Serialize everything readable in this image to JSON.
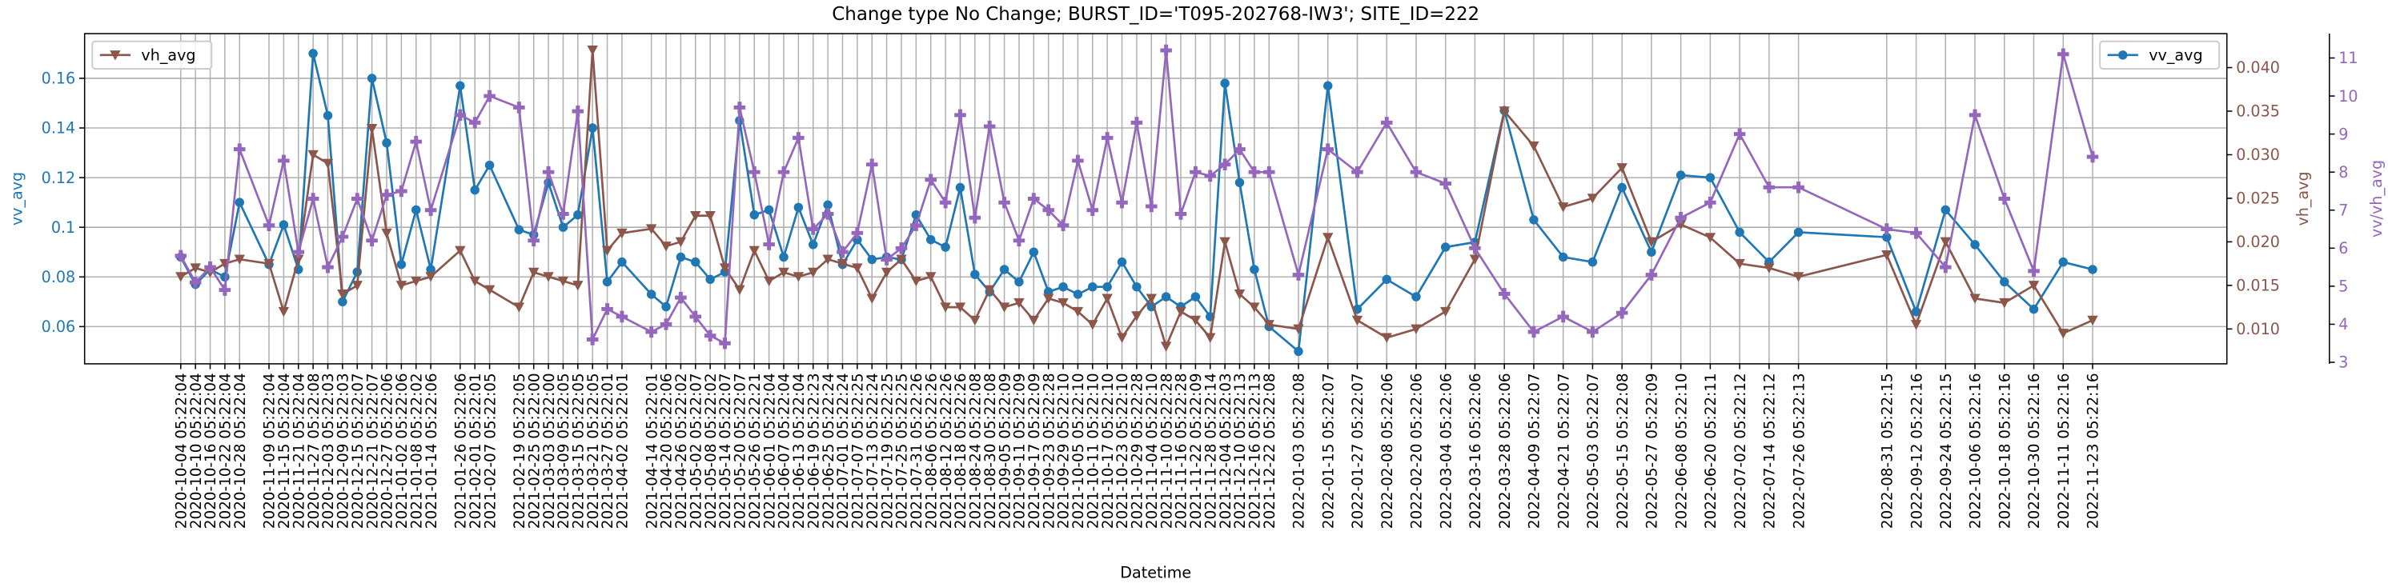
{
  "chart_data": {
    "type": "line",
    "title": "Change type No Change; BURST_ID='T095-202768-IW3'; SITE_ID=222",
    "xlabel": "Datetime",
    "ylabel": "vv_avg",
    "y2label": "vh_avg",
    "y3label": "vv/vh_avg",
    "grid": true,
    "x": [
      "2020-10-04 05:22:04",
      "2020-10-10 05:22:04",
      "2020-10-16 05:22:04",
      "2020-10-22 05:22:04",
      "2020-10-28 05:22:04",
      "2020-11-09 05:22:04",
      "2020-11-15 05:22:04",
      "2020-11-21 05:22:04",
      "2020-11-27 05:22:08",
      "2020-12-03 05:22:03",
      "2020-12-09 05:22:03",
      "2020-12-15 05:22:07",
      "2020-12-21 05:22:07",
      "2020-12-27 05:22:06",
      "2021-01-02 05:22:06",
      "2021-01-08 05:22:02",
      "2021-01-14 05:22:06",
      "2021-01-26 05:22:06",
      "2021-02-01 05:22:01",
      "2021-02-07 05:22:05",
      "2021-02-19 05:22:05",
      "2021-02-25 05:22:00",
      "2021-03-03 05:22:00",
      "2021-03-09 05:22:05",
      "2021-03-15 05:22:05",
      "2021-03-21 05:22:05",
      "2021-03-27 05:22:01",
      "2021-04-02 05:22:01",
      "2021-04-14 05:22:01",
      "2021-04-20 05:22:06",
      "2021-04-26 05:22:02",
      "2021-05-02 05:22:07",
      "2021-05-08 05:22:02",
      "2021-05-14 05:22:07",
      "2021-05-20 05:22:07",
      "2021-05-26 05:22:21",
      "2021-06-01 05:22:04",
      "2021-06-07 05:22:04",
      "2021-06-13 05:22:04",
      "2021-06-19 05:22:23",
      "2021-06-25 05:22:24",
      "2021-07-01 05:22:24",
      "2021-07-07 05:22:25",
      "2021-07-13 05:22:24",
      "2021-07-19 05:22:25",
      "2021-07-25 05:22:25",
      "2021-07-31 05:22:26",
      "2021-08-06 05:22:26",
      "2021-08-12 05:22:26",
      "2021-08-18 05:22:26",
      "2021-08-24 05:22:08",
      "2021-08-30 05:22:08",
      "2021-09-05 05:22:09",
      "2021-09-11 05:22:09",
      "2021-09-17 05:22:09",
      "2021-09-23 05:22:28",
      "2021-09-29 05:22:10",
      "2021-10-05 05:22:10",
      "2021-10-11 05:22:10",
      "2021-10-17 05:22:10",
      "2021-10-23 05:22:10",
      "2021-10-29 05:22:28",
      "2021-11-04 05:22:10",
      "2021-11-10 05:22:28",
      "2021-11-16 05:22:28",
      "2021-11-22 05:22:09",
      "2021-11-28 05:22:14",
      "2021-12-04 05:22:03",
      "2021-12-10 05:22:13",
      "2021-12-16 05:22:13",
      "2021-12-22 05:22:08",
      "2022-01-03 05:22:08",
      "2022-01-15 05:22:07",
      "2022-01-27 05:22:07",
      "2022-02-08 05:22:06",
      "2022-02-20 05:22:06",
      "2022-03-04 05:22:06",
      "2022-03-16 05:22:06",
      "2022-03-28 05:22:06",
      "2022-04-09 05:22:07",
      "2022-04-21 05:22:07",
      "2022-05-03 05:22:07",
      "2022-05-15 05:22:08",
      "2022-05-27 05:22:09",
      "2022-06-08 05:22:10",
      "2022-06-20 05:22:11",
      "2022-07-02 05:22:12",
      "2022-07-14 05:22:12",
      "2022-07-26 05:22:13",
      "2022-08-31 05:22:15",
      "2022-09-12 05:22:16",
      "2022-09-24 05:22:15",
      "2022-10-06 05:22:16",
      "2022-10-18 05:22:16",
      "2022-10-30 05:22:16",
      "2022-11-11 05:22:16",
      "2022-11-23 05:22:16"
    ],
    "xlim": [
      "2020-08-26",
      "2023-01-17"
    ],
    "ylim": [
      0.045,
      0.178
    ],
    "yticks": [
      0.06,
      0.08,
      0.1,
      0.12,
      0.14,
      0.16
    ],
    "y2lim": [
      0.006,
      0.0439
    ],
    "y2ticks": [
      {
        "value": 0.01,
        "label": "0.010"
      },
      {
        "value": 0.015,
        "label": "0.015"
      },
      {
        "value": 0.02,
        "label": "0.020"
      },
      {
        "value": 0.025,
        "label": "0.025"
      },
      {
        "value": 0.03,
        "label": "0.030"
      },
      {
        "value": 0.035,
        "label": "0.035"
      },
      {
        "value": 0.04,
        "label": "0.040"
      }
    ],
    "y3lim": [
      2.96,
      11.64
    ],
    "y3ticks": [
      3,
      4,
      5,
      6,
      7,
      8,
      9,
      10,
      11
    ],
    "series": [
      {
        "name": "vv_avg",
        "color": "#1f77b4",
        "axis": "y",
        "marker": "circle",
        "legend_loc": "upper right",
        "values": [
          0.088,
          0.077,
          0.083,
          0.08,
          0.11,
          0.085,
          0.101,
          0.083,
          0.17,
          0.145,
          0.07,
          0.082,
          0.16,
          0.134,
          0.085,
          0.107,
          0.083,
          0.157,
          0.115,
          0.125,
          0.099,
          0.097,
          0.118,
          0.1,
          0.105,
          0.14,
          0.078,
          0.086,
          0.073,
          0.068,
          0.088,
          0.086,
          0.079,
          0.082,
          0.143,
          0.105,
          0.107,
          0.088,
          0.108,
          0.093,
          0.109,
          0.085,
          0.095,
          0.087,
          0.088,
          0.087,
          0.105,
          0.095,
          0.092,
          0.116,
          0.081,
          0.074,
          0.083,
          0.078,
          0.09,
          0.074,
          0.076,
          0.073,
          0.076,
          0.076,
          0.086,
          0.076,
          0.068,
          0.072,
          0.068,
          0.072,
          0.064,
          0.158,
          0.118,
          0.083,
          0.06,
          0.05,
          0.157,
          0.067,
          0.079,
          0.072,
          0.092,
          0.094,
          0.147,
          0.103,
          0.088,
          0.086,
          0.116,
          0.09,
          0.121,
          0.12,
          0.098,
          0.086,
          0.098,
          0.096,
          0.066,
          0.107,
          0.093,
          0.078,
          0.067,
          0.086,
          0.083
        ]
      },
      {
        "name": "vh_avg",
        "color": "#8c564b",
        "axis": "y2",
        "marker": "triangle-down",
        "legend_loc": "upper left",
        "values": [
          0.016,
          0.017,
          0.0165,
          0.0175,
          0.018,
          0.0175,
          0.012,
          0.018,
          0.03,
          0.029,
          0.014,
          0.015,
          0.033,
          0.021,
          0.015,
          0.0155,
          0.016,
          0.019,
          0.0155,
          0.0145,
          0.0125,
          0.0165,
          0.016,
          0.0155,
          0.015,
          0.042,
          0.019,
          0.021,
          0.0215,
          0.0195,
          0.02,
          0.023,
          0.023,
          0.017,
          0.0145,
          0.019,
          0.0155,
          0.0165,
          0.016,
          0.0165,
          0.018,
          0.0175,
          0.017,
          0.0135,
          0.0165,
          0.018,
          0.0155,
          0.016,
          0.0125,
          0.0125,
          0.011,
          0.0145,
          0.0125,
          0.013,
          0.011,
          0.0135,
          0.013,
          0.012,
          0.0105,
          0.0135,
          0.009,
          0.0115,
          0.0135,
          0.008,
          0.012,
          0.011,
          0.009,
          0.02,
          0.014,
          0.0125,
          0.0105,
          0.01,
          0.0205,
          0.011,
          0.009,
          0.01,
          0.012,
          0.018,
          0.035,
          0.031,
          0.024,
          0.025,
          0.0285,
          0.02,
          0.022,
          0.0205,
          0.0175,
          0.017,
          0.016,
          0.0185,
          0.0105,
          0.02,
          0.0135,
          0.013,
          0.015,
          0.0095,
          0.011
        ]
      },
      {
        "color": "#9467bd",
        "axis": "y3",
        "marker": "plus",
        "values": [
          5.8,
          5.1,
          5.5,
          4.9,
          8.6,
          6.6,
          8.3,
          5.9,
          7.3,
          5.5,
          6.3,
          7.3,
          6.2,
          7.4,
          7.5,
          8.8,
          7.0,
          9.5,
          9.3,
          10.0,
          9.7,
          6.2,
          8.0,
          6.9,
          9.6,
          3.6,
          4.4,
          4.2,
          3.8,
          4.0,
          4.7,
          4.2,
          3.7,
          3.5,
          9.7,
          8.0,
          6.1,
          8.0,
          8.9,
          6.5,
          6.9,
          5.9,
          6.4,
          8.2,
          5.7,
          6.0,
          6.6,
          7.8,
          7.2,
          9.5,
          6.8,
          9.2,
          7.2,
          6.2,
          7.3,
          7.0,
          6.6,
          8.3,
          7.0,
          8.9,
          7.2,
          9.3,
          7.1,
          11.2,
          6.9,
          8.0,
          7.9,
          8.2,
          8.6,
          8.0,
          8.0,
          5.3,
          8.6,
          8.0,
          9.3,
          8.0,
          7.7,
          6.0,
          4.8,
          3.8,
          4.2,
          3.8,
          4.3,
          5.3,
          6.8,
          7.2,
          9.0,
          7.6,
          7.6,
          6.5,
          6.4,
          5.5,
          9.5,
          7.3,
          5.4,
          11.1,
          8.4
        ]
      }
    ]
  }
}
